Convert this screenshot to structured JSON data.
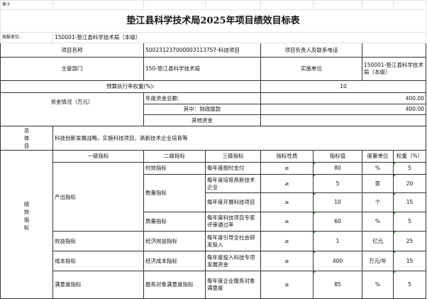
{
  "sheet_label": "表十",
  "title": "垫江县科学技术局2025年项目绩效目标表",
  "unit_label": "填报单位:",
  "unit_value": "150001-垫江县科学技术局（本级）",
  "project_name_label": "项目名称",
  "project_name_value": "500231237000003113757-科技项目",
  "contact_label": "项目负责人及联系电话",
  "contact_value": "",
  "dept_label": "主管部门",
  "dept_value": "150-垫江县科学技术局",
  "impl_label": "实施单位",
  "impl_value": "150001-垫江县科学技术局（本级）",
  "budget_weight_label": "预算执行率权重(%):",
  "budget_weight_value": "10",
  "funds_label": "资金情况（万元）",
  "funds": [
    {
      "label": "年度资金总额:",
      "value": "400.00"
    },
    {
      "label": "其中：财政拨款",
      "value": "400.00"
    },
    {
      "label": "其他资金",
      "value": ""
    }
  ],
  "goal_label": "总体目",
  "goal_value": "科技创新发展战略，实施科技项目，高新技术企业培育等",
  "perf_label": "绩效指标",
  "headers": [
    "一级指标",
    "二级指标",
    "三级指标",
    "指标性质",
    "指标值",
    "度量单位",
    "权重（%）"
  ],
  "rows": [
    {
      "l1": "产出指标",
      "l2": "时效指标",
      "l3": "每年度按时支付",
      "nature": "≥",
      "value": "80",
      "unit": "%",
      "weight": "5"
    },
    {
      "l2": "数量指标",
      "l3": "每年度培育高新技术企业",
      "nature": "≥",
      "value": "5",
      "unit": "家",
      "weight": "20"
    },
    {
      "l3": "每年度开展科技项目",
      "nature": "≥",
      "value": "10",
      "unit": "个",
      "weight": "15"
    },
    {
      "l2": "质量指标",
      "l3": "每年度科技项目专家评审通过率",
      "nature": "≥",
      "value": "60",
      "unit": "%",
      "weight": "5"
    },
    {
      "l1": "效益指标",
      "l2": "经济效益指标",
      "l3": "每年度引导全社会研发投入",
      "nature": "≥",
      "value": "1",
      "unit": "亿元",
      "weight": "25"
    },
    {
      "l1": "成本指标",
      "l2": "经济成本指标",
      "l3": "每年度投入科技专项发展资金",
      "nature": "≥",
      "value": "400",
      "unit": "万元/年",
      "weight": "15"
    },
    {
      "l1": "满意度指标",
      "l2": "服务对象满意度指标",
      "l3": "每年度企业服务对象满意度",
      "nature": "≥",
      "value": "85",
      "unit": "%",
      "weight": "5"
    }
  ]
}
